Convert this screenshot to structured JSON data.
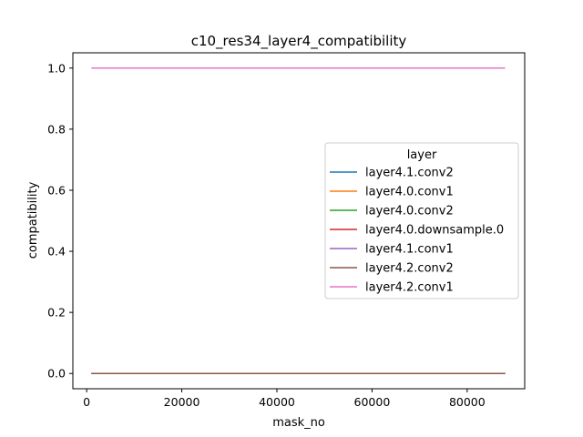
{
  "chart_data": {
    "type": "line",
    "title": "c10_res34_layer4_compatibility",
    "xlabel": "mask_no",
    "ylabel": "compatibility",
    "xlim": [
      -2900,
      92100
    ],
    "ylim": [
      -0.05,
      1.05
    ],
    "xticks": [
      0,
      20000,
      40000,
      60000,
      80000
    ],
    "yticks": [
      0.0,
      0.2,
      0.4,
      0.6,
      0.8,
      1.0
    ],
    "xtick_labels": [
      "0",
      "20000",
      "40000",
      "60000",
      "80000"
    ],
    "ytick_labels": [
      "0.0",
      "0.2",
      "0.4",
      "0.6",
      "0.8",
      "1.0"
    ],
    "grid": false,
    "legend": {
      "title": "layer",
      "placement": "center-right"
    },
    "series": [
      {
        "name": "layer4.1.conv2",
        "color": "#1f77b4",
        "x": [
          1000,
          88000
        ],
        "y": [
          0.0,
          0.0
        ]
      },
      {
        "name": "layer4.0.conv1",
        "color": "#ff7f0e",
        "x": [
          1000,
          88000
        ],
        "y": [
          0.0,
          0.0
        ]
      },
      {
        "name": "layer4.0.conv2",
        "color": "#2ca02c",
        "x": [
          1000,
          88000
        ],
        "y": [
          0.0,
          0.0
        ]
      },
      {
        "name": "layer4.0.downsample.0",
        "color": "#d62728",
        "x": [
          1000,
          88000
        ],
        "y": [
          0.0,
          0.0
        ]
      },
      {
        "name": "layer4.1.conv1",
        "color": "#9467bd",
        "x": [
          1000,
          88000
        ],
        "y": [
          0.0,
          0.0
        ]
      },
      {
        "name": "layer4.2.conv2",
        "color": "#8c564b",
        "x": [
          1000,
          88000
        ],
        "y": [
          0.0,
          0.0
        ]
      },
      {
        "name": "layer4.2.conv1",
        "color": "#e377c2",
        "x": [
          1000,
          88000
        ],
        "y": [
          1.0,
          1.0
        ]
      }
    ]
  }
}
